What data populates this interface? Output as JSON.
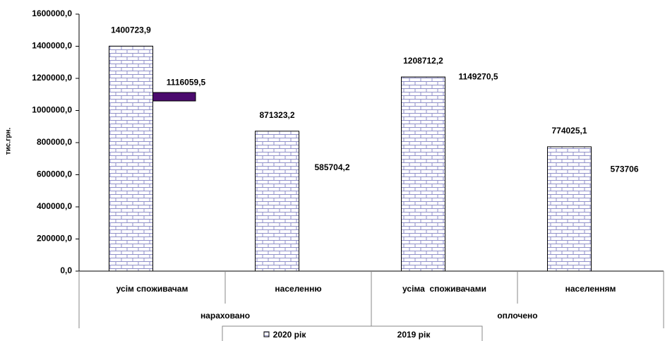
{
  "chart_data": {
    "type": "bar",
    "ylabel": "тис.грн.",
    "categories": [
      "усім споживачам",
      "населенню",
      "усіма  споживачами",
      "населенням"
    ],
    "groups": [
      {
        "label": "нараховано",
        "span": 2
      },
      {
        "label": "оплочено",
        "span": 2
      }
    ],
    "series": [
      {
        "name": "2020 рік",
        "color": "#8f8fc8",
        "pattern": "brick",
        "values": [
          1400723.9,
          871323.2,
          1208712.2,
          774025.1
        ],
        "value_labels": [
          "1400723,9",
          "871323,2",
          "1208712,2",
          "774025,1"
        ]
      },
      {
        "name": "2019 рік",
        "color": "none",
        "values": [
          1116059.5,
          585704.2,
          1149270.5,
          573706
        ],
        "value_labels": [
          "1116059,5",
          "585704,2",
          "1149270,5",
          "573706"
        ]
      }
    ],
    "ylim": [
      0,
      1600000
    ],
    "yticks": [
      {
        "value": 0,
        "label": "0,0"
      },
      {
        "value": 200000,
        "label": "200000,0"
      },
      {
        "value": 400000,
        "label": "400000,0"
      },
      {
        "value": 600000,
        "label": "600000,0"
      },
      {
        "value": 800000,
        "label": "800000,0"
      },
      {
        "value": 1000000,
        "label": "1000000,0"
      },
      {
        "value": 1200000,
        "label": "1200000,0"
      },
      {
        "value": 1400000,
        "label": "1400000,0"
      },
      {
        "value": 1600000,
        "label": "1600000,0"
      }
    ],
    "legend": "bottom"
  }
}
